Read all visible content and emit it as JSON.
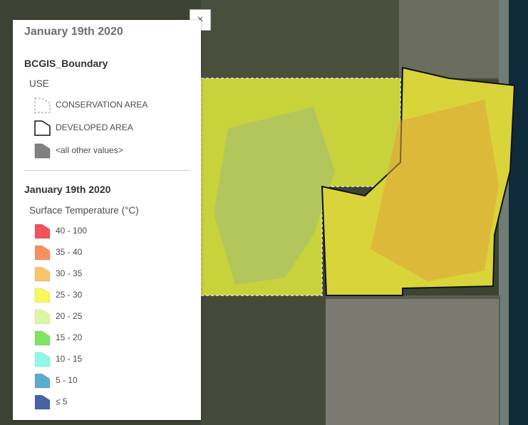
{
  "legend": {
    "title": "January 19th 2020",
    "boundary_layer": {
      "title": "BCGIS_Boundary",
      "field": "USE",
      "items": [
        {
          "label": "CONSERVATION AREA",
          "symbol": "dashed-outline-polygon"
        },
        {
          "label": "DEVELOPED AREA",
          "symbol": "solid-outline-polygon"
        },
        {
          "label": "<all other values>",
          "symbol": "gray-fill-polygon",
          "color": "#808080"
        }
      ]
    },
    "temperature_layer": {
      "title": "January 19th 2020",
      "field": "Surface Temperature (°C)",
      "classes": [
        {
          "label": "40 - 100",
          "color": "#f0535a"
        },
        {
          "label": "35 - 40",
          "color": "#f7905f"
        },
        {
          "label": "30 - 35",
          "color": "#f9c46c"
        },
        {
          "label": "25 - 30",
          "color": "#f8f75c"
        },
        {
          "label": "20 - 25",
          "color": "#dcf7a2"
        },
        {
          "label": "15 - 20",
          "color": "#7fe462"
        },
        {
          "label": "10 - 15",
          "color": "#8ff8e7"
        },
        {
          "label": "5 - 10",
          "color": "#5aaccd"
        },
        {
          "label": "≤ 5",
          "color": "#4c60a6"
        }
      ]
    }
  },
  "close_button": {
    "label": "×"
  }
}
